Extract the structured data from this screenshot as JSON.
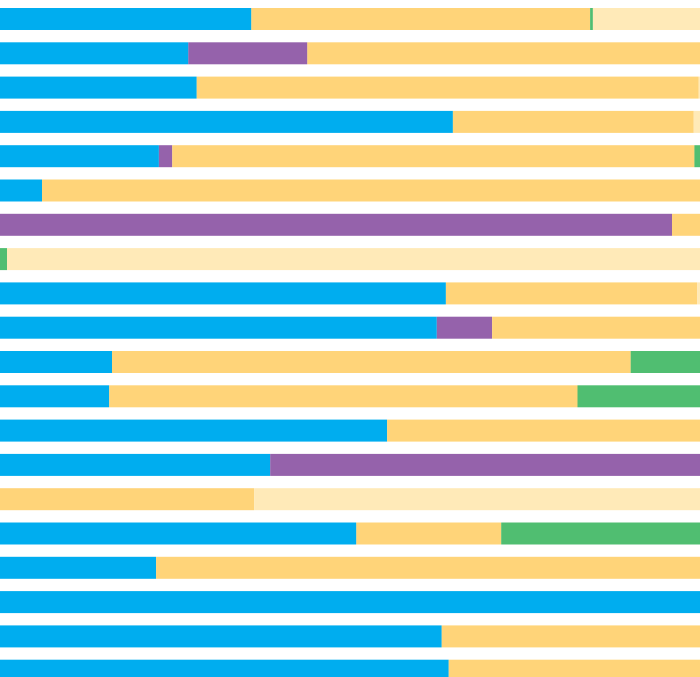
{
  "chart_data": {
    "type": "bar",
    "orientation": "horizontal",
    "stacked": true,
    "title": "",
    "xlabel": "",
    "ylabel": "",
    "xlim": [
      0,
      100
    ],
    "grid": false,
    "legend": "none",
    "series_colors": {
      "blue": "#00adef",
      "purple": "#9562ab",
      "orange": "#ffd479",
      "green": "#50be71",
      "light": "#ffeab8"
    },
    "rows": [
      [
        {
          "color": "blue",
          "value": 35.9
        },
        {
          "color": "orange",
          "value": 48.4
        },
        {
          "color": "green",
          "value": 0.4
        },
        {
          "color": "light",
          "value": 15.3
        }
      ],
      [
        {
          "color": "blue",
          "value": 26.9
        },
        {
          "color": "purple",
          "value": 17.0
        },
        {
          "color": "orange",
          "value": 56.1
        }
      ],
      [
        {
          "color": "blue",
          "value": 28.1
        },
        {
          "color": "orange",
          "value": 71.7
        },
        {
          "color": "light",
          "value": 0.2
        }
      ],
      [
        {
          "color": "blue",
          "value": 64.7
        },
        {
          "color": "orange",
          "value": 34.4
        },
        {
          "color": "light",
          "value": 0.9
        }
      ],
      [
        {
          "color": "blue",
          "value": 22.7
        },
        {
          "color": "purple",
          "value": 1.9
        },
        {
          "color": "orange",
          "value": 74.6
        },
        {
          "color": "green",
          "value": 0.8
        }
      ],
      [
        {
          "color": "blue",
          "value": 6.0
        },
        {
          "color": "orange",
          "value": 94.0
        }
      ],
      [
        {
          "color": "purple",
          "value": 96.0
        },
        {
          "color": "orange",
          "value": 4.0
        }
      ],
      [
        {
          "color": "green",
          "value": 1.0
        },
        {
          "color": "light",
          "value": 99.0
        }
      ],
      [
        {
          "color": "blue",
          "value": 63.7
        },
        {
          "color": "orange",
          "value": 35.9
        },
        {
          "color": "light",
          "value": 0.4
        }
      ],
      [
        {
          "color": "blue",
          "value": 62.4
        },
        {
          "color": "purple",
          "value": 7.9
        },
        {
          "color": "orange",
          "value": 29.7
        }
      ],
      [
        {
          "color": "blue",
          "value": 16.0
        },
        {
          "color": "orange",
          "value": 74.1
        },
        {
          "color": "green",
          "value": 9.9
        }
      ],
      [
        {
          "color": "blue",
          "value": 15.6
        },
        {
          "color": "orange",
          "value": 66.9
        },
        {
          "color": "green",
          "value": 17.5
        }
      ],
      [
        {
          "color": "blue",
          "value": 55.3
        },
        {
          "color": "orange",
          "value": 44.7
        }
      ],
      [
        {
          "color": "blue",
          "value": 38.6
        },
        {
          "color": "purple",
          "value": 61.4
        }
      ],
      [
        {
          "color": "orange",
          "value": 36.3
        },
        {
          "color": "light",
          "value": 63.7
        }
      ],
      [
        {
          "color": "blue",
          "value": 50.9
        },
        {
          "color": "orange",
          "value": 20.7
        },
        {
          "color": "green",
          "value": 28.4
        }
      ],
      [
        {
          "color": "blue",
          "value": 22.3
        },
        {
          "color": "orange",
          "value": 77.7
        }
      ],
      [
        {
          "color": "blue",
          "value": 100.0
        }
      ],
      [
        {
          "color": "blue",
          "value": 63.1
        },
        {
          "color": "orange",
          "value": 36.9
        }
      ],
      [
        {
          "color": "blue",
          "value": 64.1
        },
        {
          "color": "orange",
          "value": 35.9
        }
      ]
    ]
  }
}
